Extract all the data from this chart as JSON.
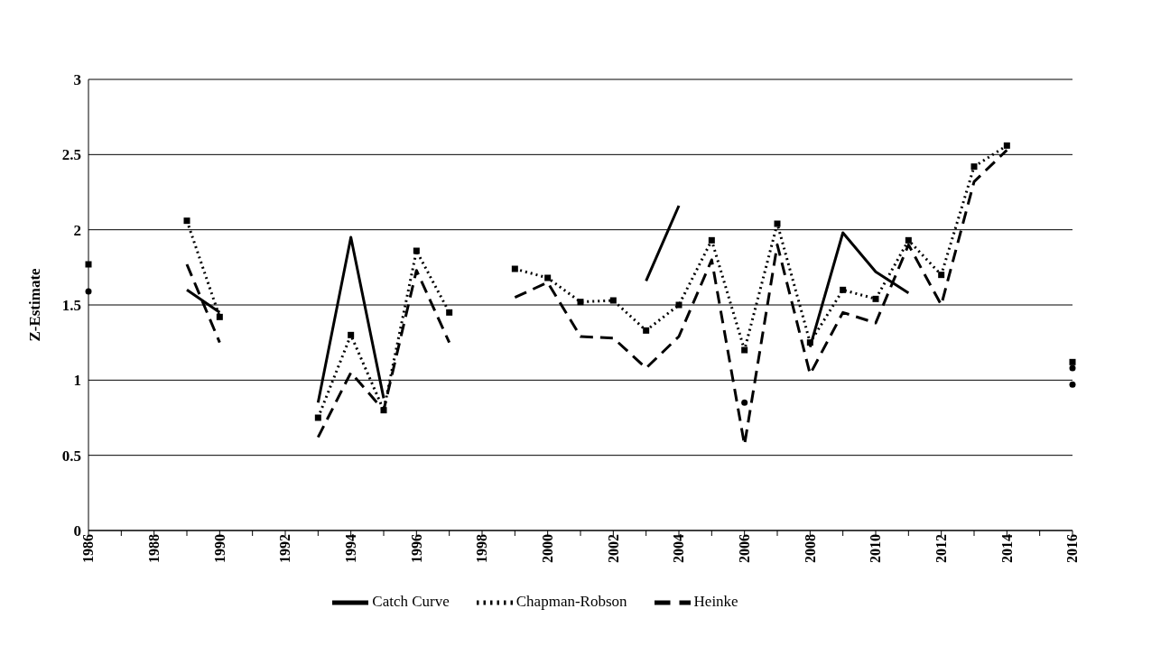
{
  "chart_data": {
    "type": "line",
    "ylabel": "Z-Estimate",
    "categories": [
      "1986",
      null,
      "1988",
      null,
      "1990",
      null,
      "1992",
      null,
      "1994",
      null,
      "1996",
      null,
      "1998",
      null,
      "2000",
      null,
      "2002",
      null,
      "2004",
      null,
      "2006",
      null,
      "2008",
      null,
      "2010",
      null,
      "2012",
      null,
      "2014",
      null,
      "2016"
    ],
    "series": [
      {
        "name": "Catch Curve",
        "color": "#000000",
        "line_style": "solid",
        "marker": "none",
        "values": [
          1.59,
          null,
          null,
          1.6,
          1.45,
          null,
          null,
          0.85,
          1.95,
          0.88,
          null,
          null,
          null,
          null,
          null,
          null,
          null,
          1.66,
          2.16,
          null,
          0.85,
          null,
          1.22,
          1.98,
          1.72,
          1.58,
          null,
          null,
          null,
          null,
          0.97
        ]
      },
      {
        "name": "Heinke",
        "color": "#000000",
        "line_style": "dashed",
        "marker": "none",
        "values": [
          null,
          null,
          null,
          1.77,
          1.25,
          null,
          null,
          0.62,
          1.05,
          0.8,
          1.73,
          1.25,
          null,
          1.55,
          1.65,
          1.29,
          1.28,
          1.08,
          1.29,
          1.8,
          0.57,
          1.9,
          1.04,
          1.45,
          1.38,
          1.9,
          1.5,
          2.32,
          2.53,
          null,
          1.08
        ]
      },
      {
        "name": "Chapman-Robson",
        "color": "#000000",
        "line_style": "dotted",
        "marker": "square",
        "values": [
          1.77,
          null,
          null,
          2.06,
          1.42,
          null,
          null,
          0.75,
          1.3,
          0.8,
          1.86,
          1.45,
          null,
          1.74,
          1.68,
          1.52,
          1.53,
          1.33,
          1.5,
          1.93,
          1.2,
          2.04,
          1.25,
          1.6,
          1.54,
          1.93,
          1.7,
          2.42,
          2.56,
          null,
          1.12
        ]
      }
    ],
    "ylim": [
      0,
      3
    ],
    "yticks": [
      0,
      0.5,
      1,
      1.5,
      2,
      2.5,
      3
    ],
    "grid": "y",
    "legend": "bottom"
  }
}
